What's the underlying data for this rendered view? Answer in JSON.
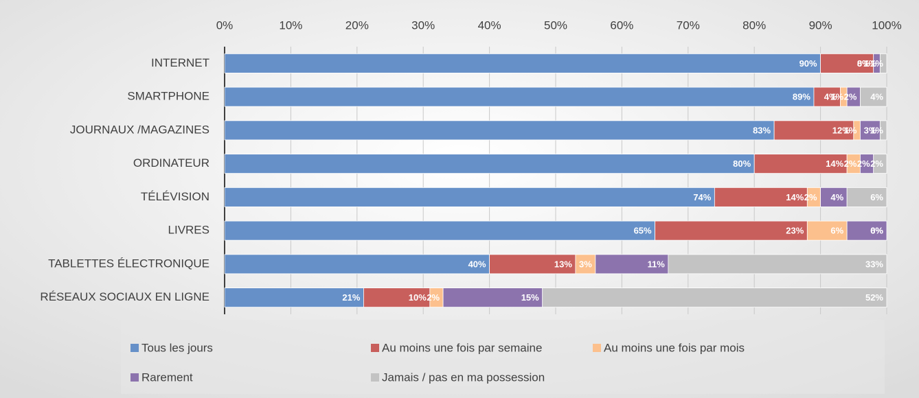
{
  "chart_data": {
    "type": "stacked-bar-horizontal",
    "categories": [
      "INTERNET",
      "SMARTPHONE",
      "JOURNAUX /MAGAZINES",
      "ORDINATEUR",
      "TÉLÉVISION",
      "LIVRES",
      "TABLETTES ÉLECTRONIQUE",
      "RÉSEAUX SOCIAUX EN LIGNE"
    ],
    "series": [
      {
        "name": "Tous les jours",
        "color": "#6690c8",
        "values": [
          90,
          89,
          83,
          80,
          74,
          65,
          40,
          21
        ],
        "value_labels": [
          "90%",
          "89%",
          "83%",
          "80%",
          "74%",
          "65%",
          "40%",
          "21%"
        ]
      },
      {
        "name": "Au moins une fois par semaine",
        "color": "#c85f5c",
        "values": [
          8,
          4,
          12,
          14,
          14,
          23,
          13,
          10
        ],
        "value_labels": [
          "8%",
          "4%",
          "12%",
          "14%",
          "14%",
          "23%",
          "13%",
          "10%"
        ]
      },
      {
        "name": "Au moins une fois par mois",
        "color": "#fcc08d",
        "values": [
          0,
          1,
          1,
          2,
          2,
          6,
          3,
          2
        ],
        "value_labels": [
          "0%",
          "1%",
          "1%",
          "2%",
          "2%",
          "6%",
          "3%",
          "2%"
        ]
      },
      {
        "name": "Rarement",
        "color": "#8c73ad",
        "values": [
          1,
          2,
          3,
          2,
          4,
          6,
          11,
          15
        ],
        "value_labels": [
          "1%",
          "2%",
          "3%",
          "2%",
          "4%",
          "6%",
          "11%",
          "15%"
        ]
      },
      {
        "name": "Jamais / pas en ma possession",
        "color": "#c3c3c3",
        "values": [
          1,
          4,
          1,
          2,
          6,
          0,
          33,
          52
        ],
        "value_labels": [
          "1%",
          "4%",
          "1%",
          "2%",
          "6%",
          "0%",
          "33%",
          "52%"
        ]
      }
    ],
    "xlim": [
      0,
      100
    ],
    "xticks": [
      {
        "value": 0,
        "label": "0%"
      },
      {
        "value": 10,
        "label": "10%"
      },
      {
        "value": 20,
        "label": "20%"
      },
      {
        "value": 30,
        "label": "30%"
      },
      {
        "value": 40,
        "label": "40%"
      },
      {
        "value": 50,
        "label": "50%"
      },
      {
        "value": 60,
        "label": "60%"
      },
      {
        "value": 70,
        "label": "70%"
      },
      {
        "value": 80,
        "label": "80%"
      },
      {
        "value": 90,
        "label": "90%"
      },
      {
        "value": 100,
        "label": "100%"
      }
    ],
    "grid": true,
    "legend": "bottom"
  }
}
